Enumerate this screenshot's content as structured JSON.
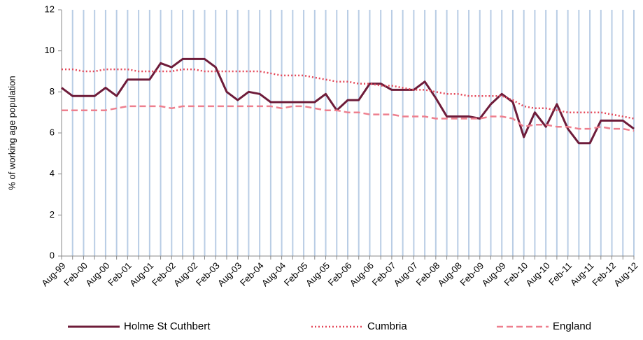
{
  "chart_data": {
    "type": "line",
    "y_label": "% of working age population",
    "categories": [
      "Aug-99",
      null,
      "Feb-00",
      null,
      "Aug-00",
      null,
      "Feb-01",
      null,
      "Aug-01",
      null,
      "Feb-02",
      null,
      "Aug-02",
      null,
      "Feb-03",
      null,
      "Aug-03",
      null,
      "Feb-04",
      null,
      "Aug-04",
      null,
      "Feb-05",
      null,
      "Aug-05",
      null,
      "Feb-06",
      null,
      "Aug-06",
      null,
      "Feb-07",
      null,
      "Aug-07",
      null,
      "Feb-08",
      null,
      "Aug-08",
      null,
      "Feb-09",
      null,
      "Aug-09",
      null,
      "Feb-10",
      null,
      "Aug-10",
      null,
      "Feb-11",
      null,
      "Aug-11",
      null,
      "Feb-12",
      null,
      "Aug-12"
    ],
    "series": [
      {
        "name": "Holme St Cuthbert",
        "color": "#6e1c3a",
        "style": "solid",
        "values": [
          8.2,
          7.8,
          7.8,
          7.8,
          8.2,
          7.8,
          8.6,
          8.6,
          8.6,
          9.4,
          9.2,
          9.6,
          9.6,
          9.6,
          9.2,
          8.0,
          7.6,
          8.0,
          7.9,
          7.5,
          7.5,
          7.5,
          7.5,
          7.5,
          7.9,
          7.1,
          7.6,
          7.6,
          8.4,
          8.4,
          8.1,
          8.1,
          8.1,
          8.5,
          7.7,
          6.8,
          6.8,
          6.8,
          6.7,
          7.4,
          7.9,
          7.5,
          5.8,
          7.0,
          6.3,
          7.4,
          6.2,
          5.5,
          5.5,
          6.6,
          6.6,
          6.6,
          6.2
        ]
      },
      {
        "name": "Cumbria",
        "color": "#e4485a",
        "style": "dotted",
        "values": [
          9.1,
          9.1,
          9.0,
          9.0,
          9.1,
          9.1,
          9.1,
          9.0,
          9.0,
          9.0,
          9.0,
          9.1,
          9.1,
          9.0,
          9.0,
          9.0,
          9.0,
          9.0,
          9.0,
          8.9,
          8.8,
          8.8,
          8.8,
          8.7,
          8.6,
          8.5,
          8.5,
          8.4,
          8.4,
          8.3,
          8.3,
          8.2,
          8.1,
          8.1,
          8.0,
          7.9,
          7.9,
          7.8,
          7.8,
          7.8,
          7.8,
          7.6,
          7.3,
          7.2,
          7.2,
          7.1,
          7.0,
          7.0,
          7.0,
          7.0,
          6.9,
          6.8,
          6.7
        ]
      },
      {
        "name": "England",
        "color": "#ee7f8e",
        "style": "dashed",
        "values": [
          7.1,
          7.1,
          7.1,
          7.1,
          7.1,
          7.2,
          7.3,
          7.3,
          7.3,
          7.3,
          7.2,
          7.3,
          7.3,
          7.3,
          7.3,
          7.3,
          7.3,
          7.3,
          7.3,
          7.3,
          7.2,
          7.3,
          7.3,
          7.2,
          7.1,
          7.1,
          7.0,
          7.0,
          6.9,
          6.9,
          6.9,
          6.8,
          6.8,
          6.8,
          6.7,
          6.7,
          6.7,
          6.7,
          6.7,
          6.8,
          6.8,
          6.7,
          6.3,
          6.4,
          6.4,
          6.3,
          6.3,
          6.2,
          6.2,
          6.3,
          6.2,
          6.2,
          6.1
        ]
      }
    ],
    "ylim": [
      0,
      12
    ],
    "yticks": [
      0,
      2,
      4,
      6,
      8,
      10,
      12
    ],
    "grid_color": "#b9cde5"
  }
}
